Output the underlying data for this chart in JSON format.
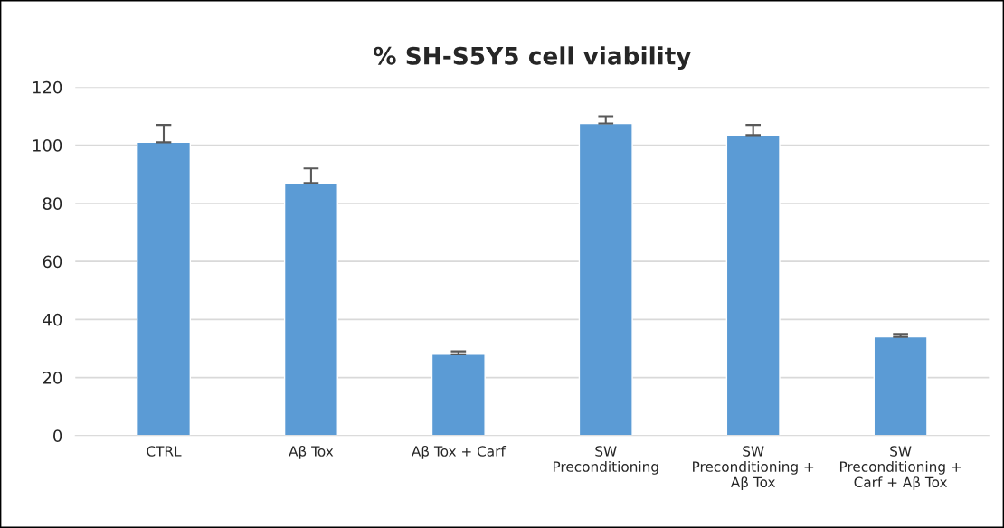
{
  "chart_data": {
    "type": "bar",
    "title": "% SH-S5Y5 cell viability",
    "categories": [
      "CTRL",
      "Aβ Tox",
      "Aβ Tox + Carf",
      "SW\nPreconditioning",
      "SW\nPreconditioning +\nAβ Tox",
      "SW\nPreconditioning +\nCarf + Aβ Tox"
    ],
    "values": [
      101,
      87,
      28,
      107.5,
      103.5,
      34
    ],
    "errors": [
      [
        101,
        107
      ],
      [
        87,
        92
      ],
      [
        28,
        29
      ],
      [
        107.5,
        110
      ],
      [
        103.5,
        107
      ],
      [
        34,
        35
      ]
    ],
    "color": "#5b9bd5",
    "ylim": [
      0,
      120
    ],
    "yticks": [
      0,
      20,
      40,
      60,
      80,
      100,
      120
    ],
    "grid": "y",
    "legend": false
  }
}
